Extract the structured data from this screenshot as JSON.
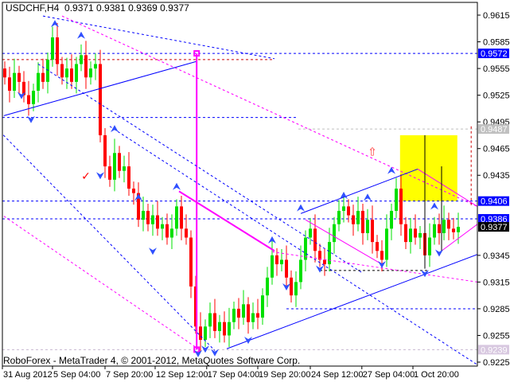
{
  "header": {
    "symbol": "USDCHF,H4",
    "ohlc": "0.9371 0.9381 0.9369 0.9377"
  },
  "footer": {
    "credit": "RoboForex - MetaTrader 4, © 2001-2012, MetaQuotes Software Corp."
  },
  "colors": {
    "bull": "#00e000",
    "bear": "#ff0000",
    "blue": "#0000ff",
    "magenta": "#ff00ff",
    "box": "#ffff00"
  },
  "chart_data": {
    "type": "candlestick",
    "ylim": [
      0.9222,
      0.9632
    ],
    "y_ticks": [
      "0.9615",
      "0.9585",
      "0.9555",
      "0.9525",
      "0.9495",
      "0.9465",
      "0.9435",
      "0.9345",
      "0.9315",
      "0.9285",
      "0.9255",
      "0.9225"
    ],
    "x_ticks": [
      {
        "bar": -0.5,
        "label": "31 Aug 2012"
      },
      {
        "bar": 10,
        "label": "5 Sep 04:00"
      },
      {
        "bar": 21,
        "label": "7 Sep 20:00"
      },
      {
        "bar": 31.5,
        "label": "12 Sep 12:00"
      },
      {
        "bar": 42.3,
        "label": "17 Sep 04:00"
      },
      {
        "bar": 53,
        "label": "19 Sep 20:00"
      },
      {
        "bar": 64,
        "label": "24 Sep 12:00"
      },
      {
        "bar": 74.8,
        "label": "27 Sep 04:00"
      },
      {
        "bar": 85.5,
        "label": "1 Oct 20:00"
      }
    ],
    "closes": [
      0.9545,
      0.953,
      0.955,
      0.954,
      0.9525,
      0.9515,
      0.953,
      0.955,
      0.954,
      0.9565,
      0.959,
      0.956,
      0.9545,
      0.9555,
      0.954,
      0.956,
      0.957,
      0.9545,
      0.9555,
      0.956,
      0.948,
      0.9445,
      0.943,
      0.946,
      0.944,
      0.9445,
      0.942,
      0.9415,
      0.9385,
      0.9395,
      0.938,
      0.939,
      0.9375,
      0.938,
      0.9365,
      0.9375,
      0.94,
      0.9375,
      0.9365,
      0.931,
      0.9265,
      0.925,
      0.9265,
      0.928,
      0.926,
      0.927,
      0.9255,
      0.927,
      0.9285,
      0.9275,
      0.929,
      0.927,
      0.928,
      0.9275,
      0.93,
      0.932,
      0.9345,
      0.9335,
      0.934,
      0.932,
      0.93,
      0.9315,
      0.934,
      0.9365,
      0.9375,
      0.935,
      0.934,
      0.9335,
      0.936,
      0.938,
      0.9395,
      0.94,
      0.939,
      0.938,
      0.9395,
      0.937,
      0.9385,
      0.936,
      0.935,
      0.934,
      0.9375,
      0.9395,
      0.942,
      0.938,
      0.936,
      0.9375,
      0.9365,
      0.937,
      0.9345,
      0.9365,
      0.938,
      0.937,
      0.9385,
      0.9375,
      0.9371,
      0.9377
    ],
    "price_labels": [
      {
        "price": 0.9572,
        "label": "0.9572",
        "bg": "#0000ff",
        "fg": "#ffffff"
      },
      {
        "price": 0.9487,
        "label": "0.9487",
        "bg": "#c0c0c0",
        "fg": "#ffffff"
      },
      {
        "price": 0.9406,
        "label": "0.9406",
        "bg": "#0000ff",
        "fg": "#ffffff"
      },
      {
        "price": 0.9386,
        "label": "0.9386",
        "bg": "#0000ff",
        "fg": "#ffffff"
      },
      {
        "price": 0.9377,
        "label": "0.9377",
        "bg": "#000000",
        "fg": "#ffffff"
      },
      {
        "price": 0.9239,
        "label": "0.9239",
        "bg": "#d8c8e0",
        "fg": "#ffffff"
      }
    ],
    "hlines": [
      {
        "price": 0.9572,
        "from": -1,
        "to": 100,
        "color": "#0000ff"
      },
      {
        "price": 0.9565,
        "from": -1,
        "to": 56.5,
        "color": "#cc0000"
      },
      {
        "price": 0.95,
        "from": -1,
        "to": 61.5,
        "color": "#0000ff"
      },
      {
        "price": 0.9487,
        "from": 61.5,
        "to": 100,
        "color": "#c0c0c0"
      },
      {
        "price": 0.9406,
        "from": -1,
        "to": 100,
        "color": "#0000ff"
      },
      {
        "price": 0.9386,
        "from": -1,
        "to": 100,
        "color": "#0000ff"
      },
      {
        "price": 0.9328,
        "from": 66,
        "to": 89,
        "color": "#000000"
      },
      {
        "price": 0.9285,
        "from": 59,
        "to": 100,
        "color": "#0000ff"
      },
      {
        "price": 0.9239,
        "from": -1,
        "to": 100,
        "color": "#c8b8d0"
      }
    ],
    "trendlines": [
      {
        "a": [
          -0.2,
          0.9502
        ],
        "b": [
          40.2,
          0.9563
        ],
        "color": "#0000ff",
        "dash": false,
        "w": 1
      },
      {
        "a": [
          40.2,
          0.9572
        ],
        "b": [
          40.2,
          0.9239
        ],
        "color": "#ff00ff",
        "dash": false,
        "w": 2
      },
      {
        "a": [
          36.5,
          0.9417
        ],
        "b": [
          56.5,
          0.935
        ],
        "color": "#ff00ff",
        "dash": false,
        "w": 2
      },
      {
        "a": [
          8,
          0.9614
        ],
        "b": [
          56.5,
          0.9566
        ],
        "color": "#0000ff",
        "dash": true,
        "w": 1
      },
      {
        "a": [
          -1,
          0.9484
        ],
        "b": [
          44,
          0.9238
        ],
        "color": "#0000ff",
        "dash": true,
        "w": 1
      },
      {
        "a": [
          12,
          0.9614
        ],
        "b": [
          99,
          0.94
        ],
        "color": "#ff00ff",
        "dash": true,
        "w": 1
      },
      {
        "a": [
          -1,
          0.9392
        ],
        "b": [
          40.5,
          0.924
        ],
        "color": "#ff00ff",
        "dash": true,
        "w": 1
      },
      {
        "a": [
          7,
          0.956
        ],
        "b": [
          75,
          0.9325
        ],
        "color": "#0000ff",
        "dash": true,
        "w": 1
      },
      {
        "a": [
          22,
          0.949
        ],
        "b": [
          99,
          0.9222
        ],
        "color": "#0000ff",
        "dash": true,
        "w": 1
      },
      {
        "a": [
          46.5,
          0.924
        ],
        "b": [
          99,
          0.9346
        ],
        "color": "#0000ff",
        "dash": false,
        "w": 1
      },
      {
        "a": [
          62,
          0.9392
        ],
        "b": [
          86.5,
          0.9442
        ],
        "color": "#0000ff",
        "dash": false,
        "w": 1
      },
      {
        "a": [
          63,
          0.9385
        ],
        "b": [
          79,
          0.9335
        ],
        "color": "#ff00ff",
        "dash": false,
        "w": 1
      },
      {
        "a": [
          86.5,
          0.9442
        ],
        "b": [
          99,
          0.94
        ],
        "color": "#ff00ff",
        "dash": false,
        "w": 1
      },
      {
        "a": [
          91.5,
          0.935
        ],
        "b": [
          99,
          0.938
        ],
        "color": "#ff00ff",
        "dash": false,
        "w": 1
      },
      {
        "a": [
          56,
          0.9349
        ],
        "b": [
          99,
          0.9315
        ],
        "color": "#ff00ff",
        "dash": true,
        "w": 1
      },
      {
        "a": [
          88,
          0.948
        ],
        "b": [
          88,
          0.933
        ],
        "color": "#000000",
        "dash": false,
        "w": 1
      },
      {
        "a": [
          91.5,
          0.9445
        ],
        "b": [
          91.5,
          0.935
        ],
        "color": "#000000",
        "dash": false,
        "w": 1
      },
      {
        "a": [
          97.7,
          0.949
        ],
        "b": [
          97.7,
          0.94
        ],
        "color": "#cc0000",
        "dash": true,
        "w": 1
      }
    ],
    "box": {
      "from": [
        82.8,
        0.948
      ],
      "to": [
        94.8,
        0.9406
      ]
    },
    "markers": [
      {
        "bar": 17,
        "price": 0.943,
        "glyph": "✓",
        "color": "#ff0000"
      },
      {
        "bar": 77,
        "price": 0.9457,
        "glyph": "⇧",
        "color": "#ff3030"
      }
    ],
    "fractals_up": [
      [
        10.5,
        0.9605
      ],
      [
        16,
        0.9592
      ],
      [
        23,
        0.9487
      ],
      [
        28,
        0.941
      ],
      [
        36,
        0.9422
      ],
      [
        56,
        0.9362
      ],
      [
        62,
        0.9398
      ],
      [
        71,
        0.9412
      ],
      [
        76,
        0.941
      ],
      [
        81,
        0.944
      ],
      [
        90,
        0.94
      ]
    ],
    "fractals_down": [
      [
        3.5,
        0.9525
      ],
      [
        5.5,
        0.9498
      ],
      [
        20,
        0.9435
      ],
      [
        31,
        0.935
      ],
      [
        40.5,
        0.9235
      ],
      [
        42,
        0.924
      ],
      [
        44,
        0.9236
      ],
      [
        51,
        0.925
      ],
      [
        59,
        0.931
      ],
      [
        66,
        0.933
      ],
      [
        79,
        0.9335
      ],
      [
        88,
        0.9325
      ],
      [
        91,
        0.9348
      ]
    ]
  }
}
